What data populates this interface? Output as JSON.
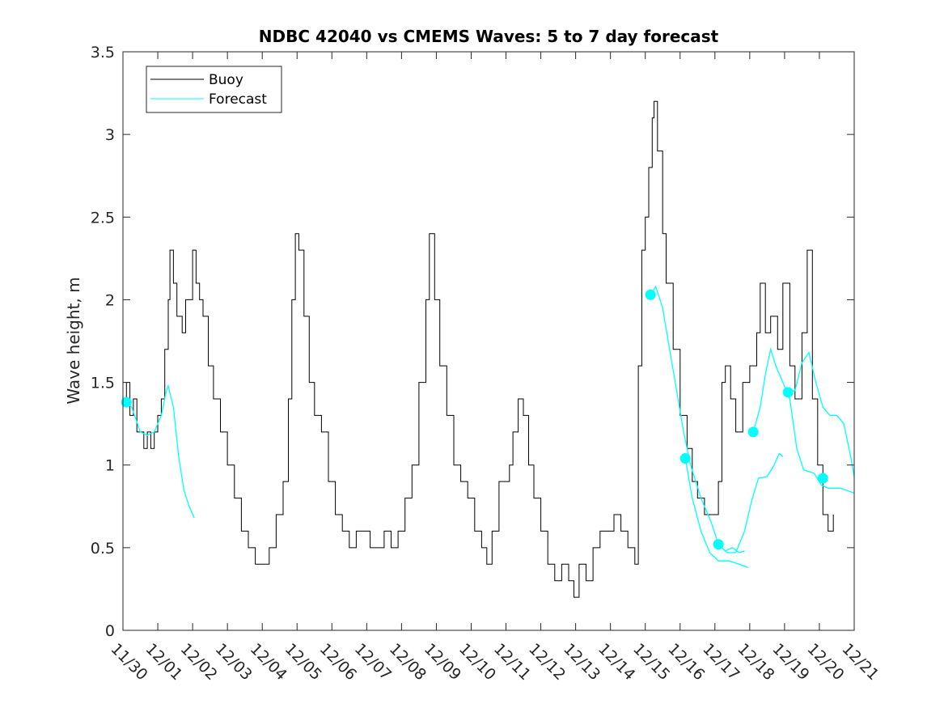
{
  "chart_data": {
    "type": "line",
    "title": "NDBC 42040 vs CMEMS Waves: 5 to 7 day forecast",
    "xlabel": "",
    "ylabel": "Wave height, m",
    "xlim": [
      0,
      21
    ],
    "ylim": [
      0,
      3.5
    ],
    "yticks": [
      0,
      0.5,
      1,
      1.5,
      2,
      2.5,
      3,
      3.5
    ],
    "ytick_labels": [
      "0",
      "0.5",
      "1",
      "1.5",
      "2",
      "2.5",
      "3",
      "3.5"
    ],
    "xtick_labels": [
      "11/30",
      "12/01",
      "12/02",
      "12/03",
      "12/04",
      "12/05",
      "12/06",
      "12/07",
      "12/08",
      "12/09",
      "12/10",
      "12/11",
      "12/12",
      "12/13",
      "12/14",
      "12/15",
      "12/16",
      "12/17",
      "12/18",
      "12/19",
      "12/20",
      "12/21"
    ],
    "legend": {
      "position": "top-left",
      "entries": [
        "Buoy",
        "Forecast"
      ]
    },
    "colors": {
      "buoy": "#000000",
      "forecast": "#00ffff"
    },
    "x_units": "days since 11/30",
    "series": [
      {
        "name": "Buoy",
        "color": "#000000",
        "points": [
          [
            0,
            1.4
          ],
          [
            0.1,
            1.5
          ],
          [
            0.2,
            1.3
          ],
          [
            0.3,
            1.4
          ],
          [
            0.4,
            1.2
          ],
          [
            0.5,
            1.2
          ],
          [
            0.6,
            1.1
          ],
          [
            0.7,
            1.2
          ],
          [
            0.8,
            1.1
          ],
          [
            0.9,
            1.2
          ],
          [
            1.0,
            1.3
          ],
          [
            1.1,
            1.4
          ],
          [
            1.2,
            1.7
          ],
          [
            1.3,
            2.0
          ],
          [
            1.35,
            2.3
          ],
          [
            1.45,
            2.1
          ],
          [
            1.55,
            1.9
          ],
          [
            1.7,
            1.8
          ],
          [
            1.8,
            2.0
          ],
          [
            1.9,
            2.0
          ],
          [
            2.0,
            2.3
          ],
          [
            2.1,
            2.1
          ],
          [
            2.2,
            2.0
          ],
          [
            2.3,
            1.9
          ],
          [
            2.45,
            1.6
          ],
          [
            2.6,
            1.4
          ],
          [
            2.8,
            1.2
          ],
          [
            3.0,
            1.0
          ],
          [
            3.2,
            0.8
          ],
          [
            3.4,
            0.6
          ],
          [
            3.6,
            0.5
          ],
          [
            3.8,
            0.4
          ],
          [
            4.0,
            0.4
          ],
          [
            4.2,
            0.5
          ],
          [
            4.4,
            0.7
          ],
          [
            4.6,
            0.9
          ],
          [
            4.75,
            1.4
          ],
          [
            4.85,
            2.0
          ],
          [
            4.95,
            2.4
          ],
          [
            5.05,
            2.3
          ],
          [
            5.2,
            1.9
          ],
          [
            5.35,
            1.5
          ],
          [
            5.5,
            1.3
          ],
          [
            5.7,
            1.2
          ],
          [
            5.9,
            0.9
          ],
          [
            6.1,
            0.7
          ],
          [
            6.3,
            0.6
          ],
          [
            6.5,
            0.5
          ],
          [
            6.7,
            0.6
          ],
          [
            6.9,
            0.6
          ],
          [
            7.1,
            0.5
          ],
          [
            7.3,
            0.5
          ],
          [
            7.5,
            0.6
          ],
          [
            7.7,
            0.5
          ],
          [
            7.9,
            0.6
          ],
          [
            8.1,
            0.8
          ],
          [
            8.3,
            1.0
          ],
          [
            8.5,
            1.5
          ],
          [
            8.7,
            2.0
          ],
          [
            8.8,
            2.4
          ],
          [
            8.95,
            2.0
          ],
          [
            9.1,
            1.6
          ],
          [
            9.3,
            1.3
          ],
          [
            9.5,
            1.0
          ],
          [
            9.7,
            0.9
          ],
          [
            9.9,
            0.8
          ],
          [
            10.1,
            0.6
          ],
          [
            10.3,
            0.5
          ],
          [
            10.45,
            0.4
          ],
          [
            10.6,
            0.6
          ],
          [
            10.8,
            0.9
          ],
          [
            11.0,
            0.9
          ],
          [
            11.1,
            1.0
          ],
          [
            11.2,
            1.2
          ],
          [
            11.35,
            1.4
          ],
          [
            11.5,
            1.3
          ],
          [
            11.65,
            1.0
          ],
          [
            11.8,
            0.8
          ],
          [
            12.0,
            0.6
          ],
          [
            12.2,
            0.4
          ],
          [
            12.4,
            0.3
          ],
          [
            12.6,
            0.4
          ],
          [
            12.8,
            0.3
          ],
          [
            12.95,
            0.2
          ],
          [
            13.1,
            0.4
          ],
          [
            13.3,
            0.3
          ],
          [
            13.5,
            0.5
          ],
          [
            13.7,
            0.6
          ],
          [
            13.9,
            0.6
          ],
          [
            14.1,
            0.7
          ],
          [
            14.3,
            0.6
          ],
          [
            14.5,
            0.5
          ],
          [
            14.7,
            0.4
          ],
          [
            14.8,
            1.6
          ],
          [
            14.9,
            2.3
          ],
          [
            15.0,
            2.5
          ],
          [
            15.1,
            2.8
          ],
          [
            15.2,
            3.1
          ],
          [
            15.25,
            3.2
          ],
          [
            15.35,
            2.9
          ],
          [
            15.5,
            2.4
          ],
          [
            15.6,
            2.1
          ],
          [
            15.8,
            1.7
          ],
          [
            16.0,
            1.3
          ],
          [
            16.2,
            1.1
          ],
          [
            16.35,
            0.9
          ],
          [
            16.5,
            0.8
          ],
          [
            16.7,
            0.7
          ],
          [
            16.9,
            0.7
          ],
          [
            17.1,
            0.9
          ],
          [
            17.2,
            1.5
          ],
          [
            17.3,
            1.6
          ],
          [
            17.45,
            1.4
          ],
          [
            17.6,
            1.2
          ],
          [
            17.8,
            1.5
          ],
          [
            18.0,
            1.6
          ],
          [
            18.2,
            1.8
          ],
          [
            18.3,
            2.1
          ],
          [
            18.45,
            1.8
          ],
          [
            18.6,
            1.9
          ],
          [
            18.8,
            1.7
          ],
          [
            18.95,
            2.1
          ],
          [
            19.15,
            1.6
          ],
          [
            19.3,
            1.4
          ],
          [
            19.5,
            1.8
          ],
          [
            19.65,
            2.3
          ],
          [
            19.8,
            1.4
          ],
          [
            19.95,
            1.0
          ],
          [
            20.1,
            0.7
          ],
          [
            20.25,
            0.6
          ],
          [
            20.4,
            0.7
          ]
        ]
      },
      {
        "name": "Forecast",
        "color": "#00ffff",
        "segments": [
          {
            "marker": [
              0.1,
              1.38
            ],
            "points": [
              [
                0.1,
                1.38
              ],
              [
                0.25,
                1.35
              ],
              [
                0.5,
                1.2
              ],
              [
                0.7,
                1.18
              ],
              [
                0.9,
                1.2
              ],
              [
                1.1,
                1.3
              ],
              [
                1.25,
                1.45
              ],
              [
                1.3,
                1.48
              ],
              [
                1.45,
                1.35
              ],
              [
                1.6,
                1.05
              ],
              [
                1.75,
                0.85
              ],
              [
                1.9,
                0.75
              ],
              [
                2.05,
                0.68
              ]
            ]
          },
          {
            "marker": [
              15.15,
              2.03
            ],
            "points": [
              [
                15.15,
                2.03
              ],
              [
                15.3,
                2.08
              ],
              [
                15.5,
                1.95
              ],
              [
                15.7,
                1.7
              ],
              [
                15.9,
                1.45
              ],
              [
                16.1,
                1.2
              ],
              [
                16.3,
                1.0
              ],
              [
                16.6,
                0.8
              ],
              [
                16.9,
                0.65
              ],
              [
                17.1,
                0.52
              ],
              [
                17.3,
                0.48
              ],
              [
                17.5,
                0.5
              ],
              [
                17.7,
                0.47
              ],
              [
                17.85,
                0.48
              ]
            ]
          },
          {
            "marker": [
              16.15,
              1.04
            ],
            "points": [
              [
                16.15,
                1.04
              ],
              [
                16.35,
                0.8
              ],
              [
                16.6,
                0.6
              ],
              [
                16.85,
                0.47
              ],
              [
                17.1,
                0.42
              ],
              [
                17.4,
                0.42
              ],
              [
                17.7,
                0.4
              ],
              [
                17.95,
                0.38
              ]
            ]
          },
          {
            "marker": [
              17.1,
              0.52
            ],
            "points": [
              [
                17.1,
                0.52
              ],
              [
                17.35,
                0.47
              ],
              [
                17.6,
                0.47
              ],
              [
                17.85,
                0.6
              ],
              [
                18.05,
                0.78
              ],
              [
                18.25,
                0.92
              ],
              [
                18.5,
                0.93
              ],
              [
                18.7,
                1.0
              ],
              [
                18.85,
                1.07
              ],
              [
                18.95,
                1.05
              ]
            ]
          },
          {
            "marker": [
              18.1,
              1.2
            ],
            "points": [
              [
                18.1,
                1.2
              ],
              [
                18.3,
                1.35
              ],
              [
                18.45,
                1.55
              ],
              [
                18.6,
                1.7
              ],
              [
                18.75,
                1.6
              ],
              [
                18.95,
                1.5
              ],
              [
                19.15,
                1.4
              ],
              [
                19.35,
                1.1
              ],
              [
                19.55,
                0.97
              ],
              [
                19.85,
                0.95
              ],
              [
                20.05,
                0.88
              ],
              [
                20.25,
                0.86
              ],
              [
                20.6,
                0.86
              ],
              [
                21.0,
                0.83
              ]
            ]
          },
          {
            "marker": [
              19.1,
              1.44
            ],
            "points": [
              [
                19.1,
                1.44
              ],
              [
                19.3,
                1.45
              ],
              [
                19.5,
                1.62
              ],
              [
                19.7,
                1.68
              ],
              [
                19.9,
                1.5
              ],
              [
                20.1,
                1.35
              ],
              [
                20.3,
                1.3
              ],
              [
                20.5,
                1.3
              ],
              [
                20.7,
                1.25
              ],
              [
                20.9,
                1.05
              ],
              [
                21.0,
                0.93
              ]
            ]
          },
          {
            "marker": [
              20.1,
              0.92
            ],
            "points": []
          }
        ]
      }
    ]
  }
}
